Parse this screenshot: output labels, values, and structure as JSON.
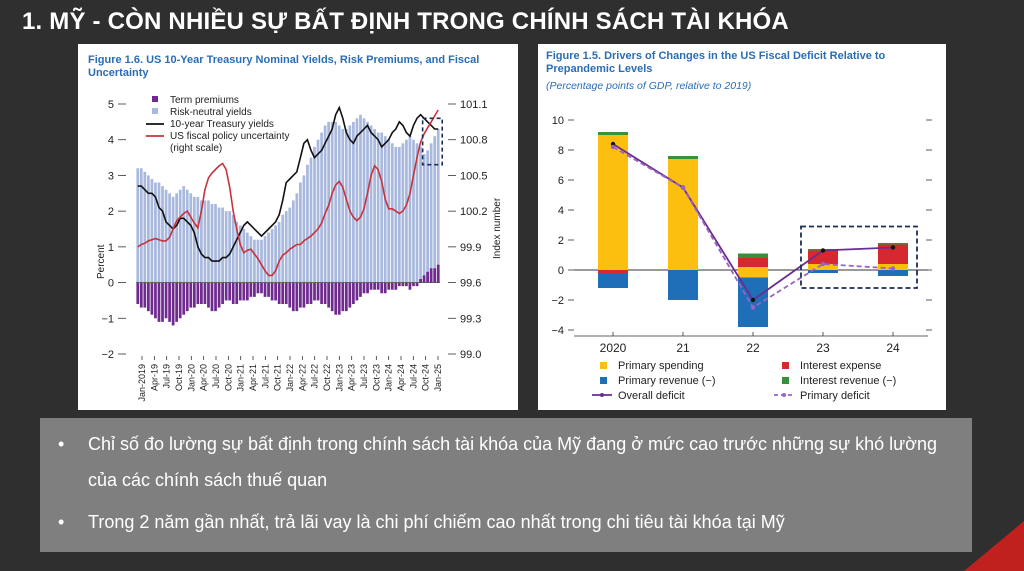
{
  "slide": {
    "title": "1. MỸ - CÒN NHIỀU SỰ BẤT ĐỊNH TRONG CHÍNH SÁCH TÀI KHÓA",
    "bullets": [
      "Chỉ số đo lường sự bất định trong chính sách tài khóa của Mỹ đang ở mức cao trước những sự khó lường của các chính sách thuế quan",
      "Trong 2 năm gần nhất, trả lãi vay là chi phí chiếm cao nhất trong chi tiêu tài khóa tại Mỹ"
    ],
    "bullet_char": "•"
  },
  "chart_data": [
    {
      "type": "bar",
      "title": "Figure 1.6. US 10-Year Treasury Nominal Yields, Risk Premiums, and Fiscal Uncertainty",
      "ylabel": "Percent",
      "y2label": "Index number",
      "ylim": [
        -2,
        5
      ],
      "yticks": [
        "5",
        "4",
        "3",
        "2",
        "1",
        "0",
        "−1",
        "−2"
      ],
      "y2lim": [
        99.0,
        101.1
      ],
      "y2ticks": [
        "101.1",
        "100.8",
        "100.5",
        "100.2",
        "99.9",
        "99.6",
        "99.3",
        "99.0"
      ],
      "xticks": [
        "Jan-2019",
        "Apr-19",
        "Jul-19",
        "Oct-19",
        "Jan-20",
        "Apr-20",
        "Jul-20",
        "Oct-20",
        "Jan-21",
        "Apr-21",
        "Jul-21",
        "Oct-21",
        "Jan-22",
        "Apr-22",
        "Jul-22",
        "Oct-22",
        "Jan-23",
        "Apr-23",
        "Jul-23",
        "Oct-23",
        "Jan-24",
        "Apr-24",
        "Jul-24",
        "Oct-24",
        "Jan-25"
      ],
      "legend": [
        "Term premiums",
        "Risk-neutral yields",
        "10-year Treasury yields",
        "US fiscal policy uncertainty (right scale)"
      ],
      "colors": {
        "term": "#6f2a8f",
        "risk": "#a9b9de",
        "yield": "#111111",
        "uncert": "#c8323c",
        "box": "#1a2e5a"
      },
      "risk_neutral": [
        3.2,
        3.2,
        3.1,
        3.0,
        2.9,
        2.8,
        2.8,
        2.7,
        2.6,
        2.5,
        2.4,
        2.5,
        2.6,
        2.7,
        2.6,
        2.5,
        2.4,
        2.4,
        2.3,
        2.3,
        2.3,
        2.2,
        2.2,
        2.1,
        2.1,
        2.0,
        2.0,
        1.9,
        1.7,
        1.6,
        1.5,
        1.4,
        1.3,
        1.2,
        1.2,
        1.2,
        1.3,
        1.4,
        1.5,
        1.6,
        1.7,
        1.9,
        2.0,
        2.1,
        2.3,
        2.5,
        2.8,
        3.0,
        3.3,
        3.5,
        3.8,
        4.0,
        4.2,
        4.4,
        4.5,
        4.5,
        4.5,
        4.4,
        4.3,
        4.3,
        4.4,
        4.5,
        4.6,
        4.7,
        4.6,
        4.5,
        4.4,
        4.3,
        4.2,
        4.2,
        4.1,
        4.0,
        3.9,
        3.8,
        3.8,
        3.9,
        4.0,
        4.1,
        4.0,
        3.9,
        3.8,
        3.6,
        3.7,
        3.9,
        4.1,
        4.3
      ],
      "term_premiums": [
        -0.6,
        -0.7,
        -0.7,
        -0.8,
        -0.9,
        -1.0,
        -1.1,
        -1.1,
        -1.0,
        -1.1,
        -1.2,
        -1.1,
        -1.0,
        -0.9,
        -0.8,
        -0.7,
        -0.7,
        -0.6,
        -0.6,
        -0.6,
        -0.7,
        -0.8,
        -0.8,
        -0.7,
        -0.6,
        -0.5,
        -0.5,
        -0.6,
        -0.6,
        -0.5,
        -0.5,
        -0.5,
        -0.4,
        -0.4,
        -0.3,
        -0.3,
        -0.4,
        -0.4,
        -0.5,
        -0.5,
        -0.6,
        -0.6,
        -0.6,
        -0.7,
        -0.8,
        -0.8,
        -0.7,
        -0.7,
        -0.6,
        -0.6,
        -0.5,
        -0.5,
        -0.6,
        -0.6,
        -0.7,
        -0.8,
        -0.9,
        -0.9,
        -0.8,
        -0.8,
        -0.7,
        -0.6,
        -0.5,
        -0.4,
        -0.3,
        -0.3,
        -0.2,
        -0.2,
        -0.2,
        -0.3,
        -0.3,
        -0.2,
        -0.2,
        -0.2,
        -0.1,
        -0.1,
        -0.1,
        -0.2,
        -0.1,
        -0.1,
        0.1,
        0.2,
        0.3,
        0.4,
        0.4,
        0.5
      ],
      "treasury_yields": [
        2.7,
        2.7,
        2.6,
        2.5,
        2.5,
        2.4,
        2.1,
        2.0,
        1.7,
        1.6,
        1.5,
        1.6,
        1.8,
        1.8,
        1.7,
        1.6,
        1.4,
        1.0,
        0.8,
        0.7,
        0.7,
        0.6,
        0.6,
        0.6,
        0.7,
        0.7,
        0.8,
        1.0,
        1.2,
        1.4,
        1.6,
        1.7,
        1.6,
        1.5,
        1.4,
        1.3,
        1.4,
        1.5,
        1.6,
        1.7,
        1.9,
        2.3,
        2.8,
        2.9,
        3.0,
        3.1,
        3.5,
        3.9,
        4.0,
        3.7,
        3.5,
        3.6,
        3.7,
        3.9,
        4.1,
        4.3,
        4.7,
        4.9,
        4.6,
        4.2,
        4.0,
        3.9,
        4.1,
        4.2,
        4.3,
        4.4,
        4.2,
        4.1,
        4.0,
        3.8,
        3.9,
        4.0,
        4.2,
        4.3,
        4.5,
        4.4,
        4.2,
        4.1,
        4.4,
        4.6,
        4.7,
        4.6,
        4.5,
        4.4,
        4.3,
        4.3
      ],
      "uncertainty_right_scale": [
        99.9,
        99.92,
        99.93,
        99.95,
        99.96,
        99.97,
        99.96,
        99.95,
        99.95,
        99.98,
        100.05,
        100.12,
        100.15,
        100.18,
        100.2,
        100.15,
        100.1,
        100.06,
        100.2,
        100.38,
        100.48,
        100.52,
        100.55,
        100.58,
        100.6,
        100.55,
        100.4,
        100.2,
        100.05,
        99.92,
        99.85,
        99.87,
        99.88,
        99.84,
        99.8,
        99.75,
        99.7,
        99.66,
        99.66,
        99.7,
        99.78,
        99.83,
        99.85,
        99.88,
        99.9,
        99.92,
        99.92,
        99.95,
        99.97,
        99.99,
        100.02,
        100.05,
        100.1,
        100.18,
        100.25,
        100.35,
        100.42,
        100.45,
        100.4,
        100.3,
        100.2,
        100.15,
        100.12,
        100.15,
        100.22,
        100.35,
        100.5,
        100.58,
        100.55,
        100.45,
        100.3,
        100.22,
        100.22,
        100.2,
        100.18,
        100.2,
        100.25,
        100.35,
        100.5,
        100.65,
        100.78,
        100.85,
        100.9,
        100.95,
        101.0,
        101.05
      ]
    },
    {
      "type": "bar",
      "title": "Figure 1.5. Drivers of Changes in the US Fiscal Deficit Relative to Prepandemic Levels",
      "subtitle": "(Percentage points of GDP, relative to 2019)",
      "ylim": [
        -4,
        10
      ],
      "yticks": [
        "10",
        "8",
        "6",
        "4",
        "2",
        "0",
        "−2",
        "−4"
      ],
      "categories": [
        "2020",
        "21",
        "22",
        "23",
        "24"
      ],
      "legend": [
        "Primary spending",
        "Interest expense",
        "Primary revenue (−)",
        "Interest revenue (−)",
        "Overall deficit",
        "Primary deficit"
      ],
      "colors": {
        "spending": "#fcbf10",
        "interest": "#d7282f",
        "revenue": "#1f6fb8",
        "int_rev": "#3a8f3a",
        "overall": "#6a2d91",
        "primary": "#9a62c5",
        "box": "#1a2e5a"
      },
      "primary_spending": [
        9.0,
        7.4,
        0.2,
        0.4,
        0.4
      ],
      "interest_expense": [
        0.0,
        0.0,
        0.6,
        0.9,
        1.3
      ],
      "interest_revenue": [
        0.2,
        0.2,
        0.3,
        0.1,
        0.1
      ],
      "primary_revenue": [
        -1.0,
        -2.0,
        -3.3,
        -0.2,
        -0.4
      ],
      "interest_negative": [
        -0.2,
        0.0,
        0.0,
        0.0,
        0.0
      ],
      "spending_negative": [
        0.0,
        0.0,
        -0.5,
        0.0,
        0.0
      ],
      "overall_deficit": [
        8.4,
        5.5,
        -2.0,
        1.3,
        1.5
      ],
      "primary_deficit": [
        8.2,
        5.5,
        -2.5,
        0.4,
        0.1
      ]
    }
  ]
}
